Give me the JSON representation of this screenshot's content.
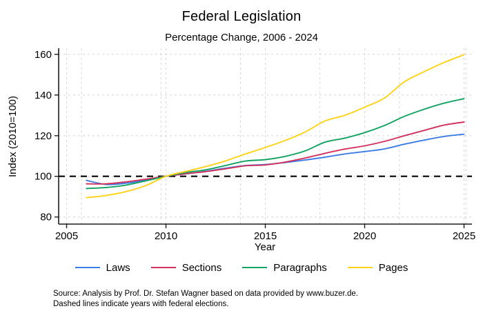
{
  "chart_data": {
    "type": "line",
    "title": "Federal Legislation",
    "subtitle": "Percentage Change, 2006 - 2024",
    "xlabel": "Year",
    "ylabel": "Index (2010=100)",
    "x_range": [
      2004.6,
      2025.4
    ],
    "y_range": [
      76.5,
      163
    ],
    "x_ticks": [
      2005,
      2010,
      2015,
      2020,
      2025
    ],
    "y_ticks": [
      80,
      100,
      120,
      140,
      160
    ],
    "grid": "light gray dashed at axis ticks",
    "reference_line_y": 100,
    "election_year_lines": [
      2005.75,
      2009.75,
      2013.75,
      2017.75,
      2021.75,
      2025.1
    ],
    "legend_position": "bottom center",
    "x": [
      2006,
      2007,
      2008,
      2009,
      2010,
      2011,
      2012,
      2013,
      2014,
      2015,
      2016,
      2017,
      2018,
      2019,
      2020,
      2021,
      2022,
      2023,
      2024,
      2025
    ],
    "series": [
      {
        "name": "Laws",
        "color": "#3b7ce6",
        "values": [
          98.0,
          96.0,
          96.6,
          98.2,
          100.0,
          101.2,
          102.5,
          104.0,
          105.3,
          105.8,
          106.8,
          108.0,
          109.4,
          111.0,
          112.2,
          113.5,
          115.8,
          117.8,
          119.6,
          120.7
        ]
      },
      {
        "name": "Sections",
        "color": "#d2315b",
        "values": [
          96.3,
          96.3,
          97.3,
          98.6,
          100.0,
          101.3,
          102.3,
          103.7,
          105.2,
          105.6,
          107.0,
          109.0,
          111.3,
          113.4,
          115.0,
          117.2,
          120.0,
          122.6,
          125.2,
          126.7
        ]
      },
      {
        "name": "Paragraphs",
        "color": "#12a261",
        "values": [
          94.0,
          94.5,
          95.7,
          97.8,
          100.0,
          101.9,
          103.2,
          105.3,
          107.5,
          108.2,
          109.8,
          112.5,
          116.8,
          118.8,
          121.5,
          125.0,
          129.5,
          133.0,
          136.0,
          138.2
        ]
      },
      {
        "name": "Pages",
        "color": "#ffd117",
        "values": [
          89.5,
          90.6,
          92.5,
          95.5,
          100.0,
          102.4,
          104.8,
          107.6,
          111.0,
          114.2,
          117.6,
          121.8,
          127.2,
          130.0,
          134.0,
          138.5,
          146.5,
          151.5,
          156.0,
          159.8
        ]
      }
    ],
    "notes": [
      "Source: Analysis by Prof. Dr. Stefan Wagner based on data provided by www.buzer.de.",
      "Dashed lines indicate years with federal elections."
    ],
    "colors": {
      "grid": "#d6d6d6",
      "axis": "#1a1a1a",
      "reference_line": "#000000",
      "background": "#ffffff"
    }
  }
}
